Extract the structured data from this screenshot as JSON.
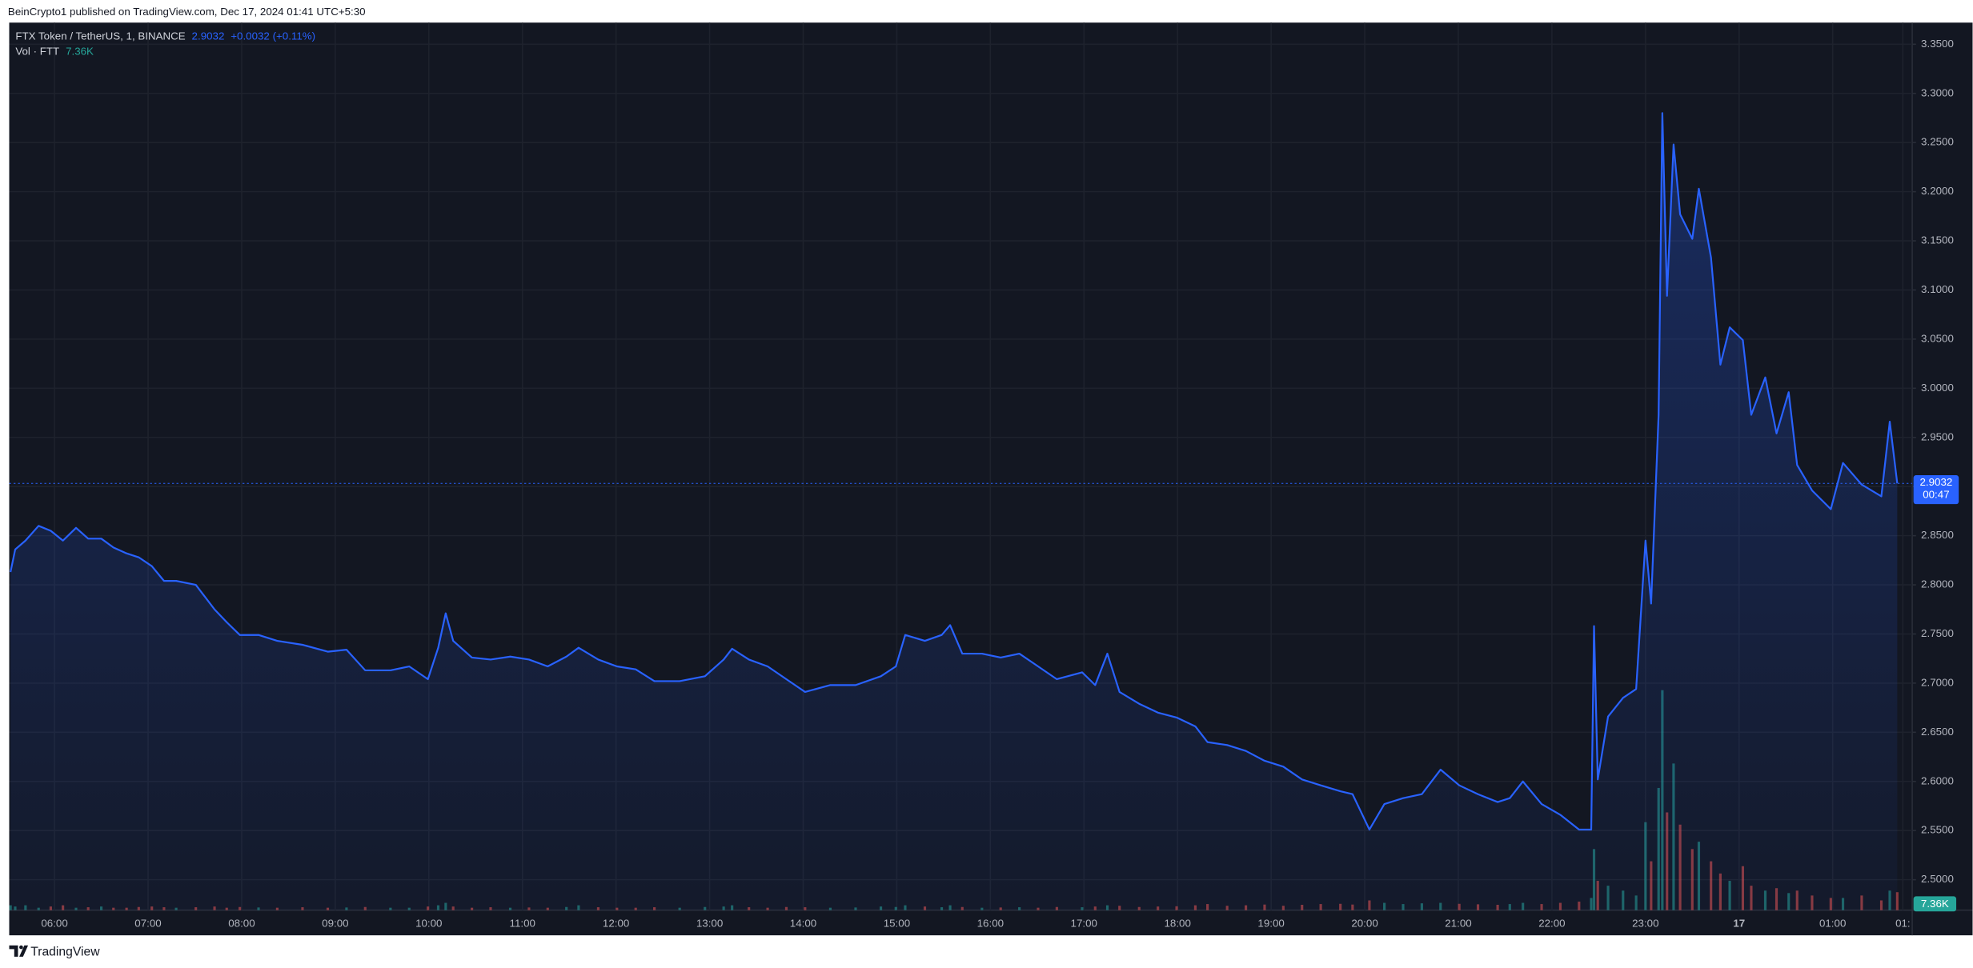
{
  "header": {
    "attribution": "BeinCrypto1 published on TradingView.com, Dec 17, 2024 01:41 UTC+5:30"
  },
  "footer": {
    "brand": "TradingView"
  },
  "chart_data": {
    "type": "area",
    "symbol": "FTX Token / TetherUS, 1, BINANCE",
    "last_price": 2.9032,
    "change": "+0.0032 (+0.11%)",
    "countdown": "00:47",
    "volume_title": "Vol · FTT",
    "last_volume_label": "7.36K",
    "color": "#2962ff",
    "volume_up_color": "#26a69a",
    "volume_down_color": "#ef5350",
    "grid": true,
    "x": [
      5.53,
      5.58,
      5.69,
      5.83,
      5.96,
      6.09,
      6.23,
      6.36,
      6.5,
      6.63,
      6.77,
      6.9,
      7.04,
      7.17,
      7.3,
      7.51,
      7.71,
      7.84,
      7.98,
      8.18,
      8.38,
      8.65,
      8.92,
      9.12,
      9.32,
      9.59,
      9.79,
      9.99,
      10.1,
      10.18,
      10.26,
      10.46,
      10.66,
      10.87,
      11.07,
      11.27,
      11.47,
      11.6,
      11.81,
      12.01,
      12.21,
      12.41,
      12.68,
      12.95,
      13.15,
      13.24,
      13.42,
      13.62,
      13.82,
      14.02,
      14.29,
      14.56,
      14.83,
      14.99,
      15.09,
      15.3,
      15.48,
      15.57,
      15.7,
      15.91,
      16.11,
      16.31,
      16.51,
      16.71,
      16.98,
      17.12,
      17.25,
      17.38,
      17.59,
      17.79,
      17.99,
      18.19,
      18.32,
      18.53,
      18.73,
      18.93,
      19.13,
      19.33,
      19.53,
      19.74,
      19.87,
      20.05,
      20.21,
      20.41,
      20.61,
      20.81,
      21.01,
      21.21,
      21.42,
      21.55,
      21.69,
      21.89,
      22.09,
      22.29,
      22.42,
      22.45,
      22.49,
      22.6,
      22.76,
      22.9,
      23.0,
      23.06,
      23.14,
      23.18,
      23.23,
      23.3,
      23.37,
      23.5,
      23.57,
      23.7,
      23.8,
      23.9,
      24.04,
      24.13,
      24.28,
      24.4,
      24.53,
      24.62,
      24.78,
      24.98,
      25.11,
      25.31,
      25.52,
      25.61,
      25.69
    ],
    "values": [
      2.813,
      2.836,
      2.845,
      2.86,
      2.855,
      2.845,
      2.858,
      2.847,
      2.847,
      2.838,
      2.832,
      2.828,
      2.819,
      2.804,
      2.804,
      2.8,
      2.775,
      2.762,
      2.749,
      2.749,
      2.743,
      2.739,
      2.732,
      2.734,
      2.713,
      2.713,
      2.717,
      2.704,
      2.736,
      2.771,
      2.743,
      2.726,
      2.724,
      2.727,
      2.724,
      2.717,
      2.727,
      2.736,
      2.724,
      2.717,
      2.714,
      2.702,
      2.702,
      2.707,
      2.724,
      2.735,
      2.724,
      2.717,
      2.704,
      2.691,
      2.698,
      2.698,
      2.707,
      2.717,
      2.749,
      2.743,
      2.749,
      2.759,
      2.73,
      2.73,
      2.726,
      2.73,
      2.717,
      2.704,
      2.711,
      2.698,
      2.73,
      2.691,
      2.679,
      2.67,
      2.665,
      2.656,
      2.64,
      2.637,
      2.631,
      2.621,
      2.615,
      2.602,
      2.596,
      2.59,
      2.587,
      2.551,
      2.577,
      2.583,
      2.587,
      2.612,
      2.596,
      2.587,
      2.579,
      2.583,
      2.6,
      2.577,
      2.566,
      2.551,
      2.551,
      2.758,
      2.602,
      2.666,
      2.685,
      2.694,
      2.845,
      2.781,
      2.973,
      3.28,
      3.094,
      3.248,
      3.177,
      3.152,
      3.203,
      3.133,
      3.024,
      3.062,
      3.049,
      2.973,
      3.011,
      2.954,
      2.996,
      2.922,
      2.896,
      2.877,
      2.924,
      2.902,
      2.89,
      2.966,
      2.9032
    ],
    "volume": [
      2,
      1.5,
      2,
      1,
      1.5,
      2,
      1,
      1.2,
      1.5,
      1,
      1,
      1.3,
      1.5,
      1.2,
      1,
      1.2,
      1.5,
      1,
      1.3,
      1.1,
      1,
      1.2,
      1,
      1.1,
      1.3,
      1,
      1,
      1.5,
      2,
      3,
      1.5,
      1,
      1.2,
      1,
      1.1,
      1,
      1.3,
      2,
      1.2,
      1,
      1,
      1.2,
      1,
      1.3,
      1.5,
      2,
      1.2,
      1,
      1.3,
      1.2,
      1,
      1.1,
      1.5,
      1.3,
      2,
      1.5,
      1.2,
      2,
      1.3,
      1,
      1.1,
      1.2,
      1,
      1.3,
      1.2,
      1.5,
      2,
      1.8,
      1.3,
      1.5,
      1.6,
      2,
      2.5,
      1.8,
      2,
      2.3,
      1.8,
      2.2,
      2.5,
      2.6,
      2.3,
      4,
      3,
      2.5,
      2.8,
      3,
      2.6,
      2.4,
      2.2,
      2.5,
      3,
      2.5,
      3,
      3.5,
      5,
      25,
      12,
      10,
      8,
      6,
      36,
      20,
      50,
      90,
      40,
      60,
      35,
      25,
      28,
      20,
      15,
      12,
      18,
      10,
      8,
      9,
      7,
      8,
      6,
      5,
      5,
      6,
      4,
      8,
      7.36
    ],
    "xlim": [
      5.516,
      25.85
    ],
    "xticks": [
      {
        "value": 6,
        "label": "06:00"
      },
      {
        "value": 7,
        "label": "07:00"
      },
      {
        "value": 8,
        "label": "08:00"
      },
      {
        "value": 9,
        "label": "09:00"
      },
      {
        "value": 10,
        "label": "10:00"
      },
      {
        "value": 11,
        "label": "11:00"
      },
      {
        "value": 12,
        "label": "12:00"
      },
      {
        "value": 13,
        "label": "13:00"
      },
      {
        "value": 14,
        "label": "14:00"
      },
      {
        "value": 15,
        "label": "15:00"
      },
      {
        "value": 16,
        "label": "16:00"
      },
      {
        "value": 17,
        "label": "17:00"
      },
      {
        "value": 18,
        "label": "18:00"
      },
      {
        "value": 19,
        "label": "19:00"
      },
      {
        "value": 20,
        "label": "20:00"
      },
      {
        "value": 21,
        "label": "21:00"
      },
      {
        "value": 22,
        "label": "22:00"
      },
      {
        "value": 23,
        "label": "23:00"
      },
      {
        "value": 24,
        "label": "17"
      },
      {
        "value": 25,
        "label": "01:00"
      },
      {
        "value": 25.75,
        "label": "01:"
      }
    ],
    "ylim": [
      2.469,
      3.372
    ],
    "yticks": [
      {
        "value": 2.5,
        "label": "2.5000"
      },
      {
        "value": 2.55,
        "label": "2.5500"
      },
      {
        "value": 2.6,
        "label": "2.6000"
      },
      {
        "value": 2.65,
        "label": "2.6500"
      },
      {
        "value": 2.7,
        "label": "2.7000"
      },
      {
        "value": 2.75,
        "label": "2.7500"
      },
      {
        "value": 2.8,
        "label": "2.8000"
      },
      {
        "value": 2.85,
        "label": "2.8500"
      },
      {
        "value": 2.9,
        "label": "2.9000"
      },
      {
        "value": 2.95,
        "label": "2.9500"
      },
      {
        "value": 3.0,
        "label": "3.0000"
      },
      {
        "value": 3.05,
        "label": "3.0500"
      },
      {
        "value": 3.1,
        "label": "3.1000"
      },
      {
        "value": 3.15,
        "label": "3.1500"
      },
      {
        "value": 3.2,
        "label": "3.2000"
      },
      {
        "value": 3.25,
        "label": "3.2500"
      },
      {
        "value": 3.3,
        "label": "3.3000"
      },
      {
        "value": 3.35,
        "label": "3.3500"
      }
    ]
  }
}
